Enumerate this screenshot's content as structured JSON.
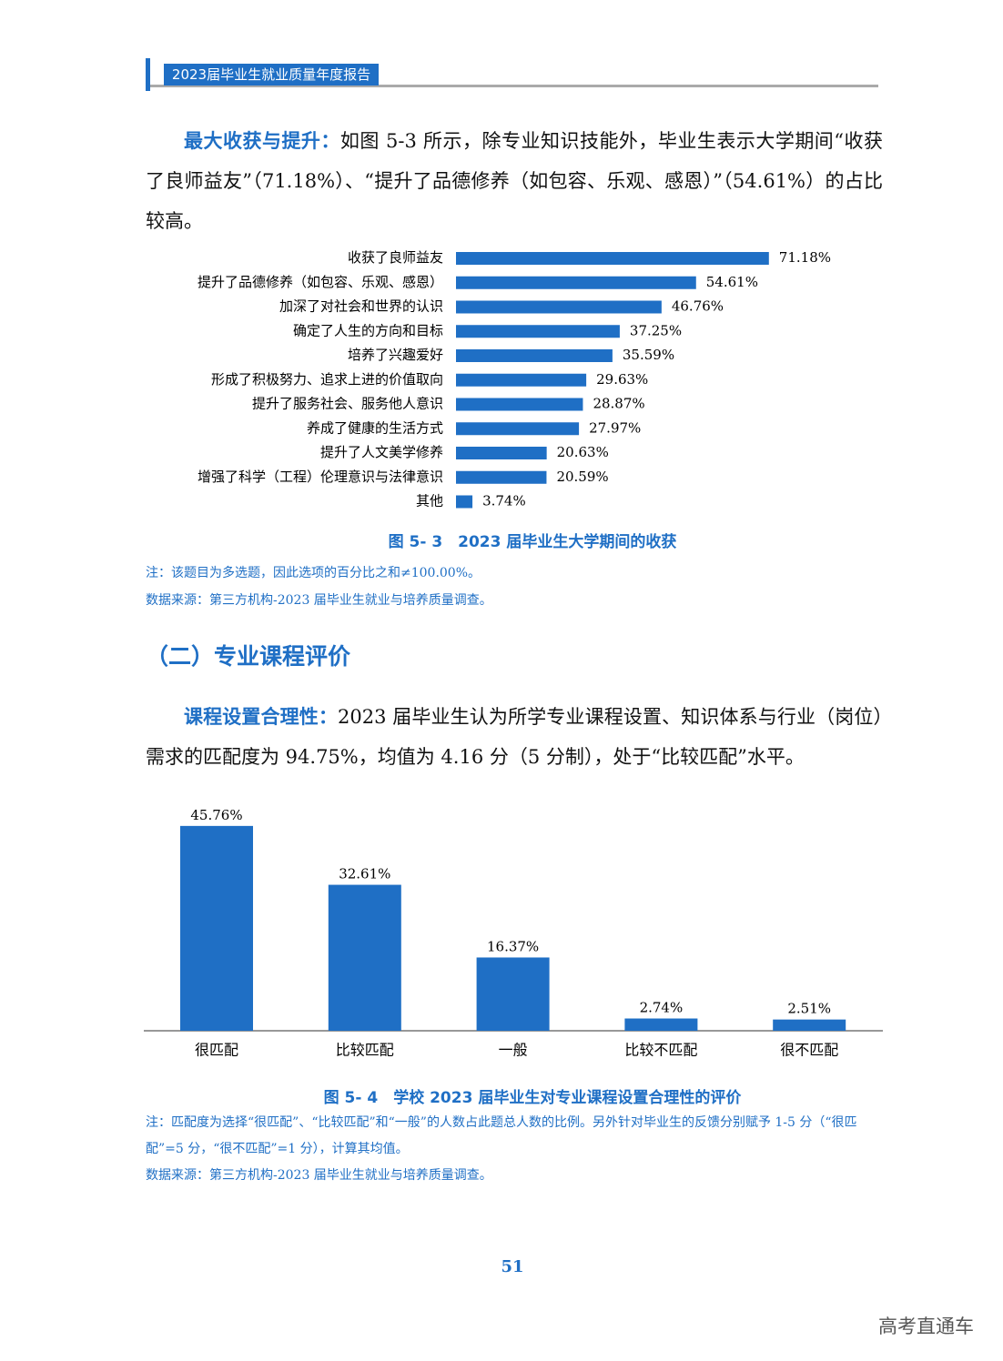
{
  "header": {
    "title": "2023届毕业生就业质量年度报告"
  },
  "paragraphs": [
    {
      "lead": "最大收获与提升：",
      "text": "如图 5-3 所示，除专业知识技能外，毕业生表示大学期间“收获了良师益友”（71.18%）、“提升了品德修养（如包容、乐观、感恩）”（54.61%）的占比较高。"
    },
    {
      "lead": "课程设置合理性：",
      "text": "2023 届毕业生认为所学专业课程设置、知识体系与行业（岗位）需求的匹配度为 94.75%，均值为 4.16 分（5 分制），处于“比较匹配”水平。"
    }
  ],
  "section_heading": "（二）专业课程评价",
  "chart_data": [
    {
      "type": "hbar",
      "color": "#1f6fc5",
      "caption": "图 5- 3　2023 届毕业生大学期间的收获",
      "categories": [
        "收获了良师益友",
        "提升了品德修养（如包容、乐观、感恩）",
        "加深了对社会和世界的认识",
        "确定了人生的方向和目标",
        "培养了兴趣爱好",
        "形成了积极努力、追求上进的价值取向",
        "提升了服务社会、服务他人意识",
        "养成了健康的生活方式",
        "提升了人文美学修养",
        "增强了科学（工程）伦理意识与法律意识",
        "其他"
      ],
      "values": [
        71.18,
        54.61,
        46.76,
        37.25,
        35.59,
        29.63,
        28.87,
        27.97,
        20.63,
        20.59,
        3.74
      ],
      "value_labels": [
        "71.18%",
        "54.61%",
        "46.76%",
        "37.25%",
        "35.59%",
        "29.63%",
        "28.87%",
        "27.97%",
        "20.63%",
        "20.59%",
        "3.74%"
      ],
      "notes": [
        "注：该题目为多选题，因此选项的百分比之和≠100.00%。",
        "数据来源：第三方机构-2023 届毕业生就业与培养质量调查。"
      ]
    },
    {
      "type": "bar",
      "color": "#1f6fc5",
      "caption": "图 5- 4　学校 2023 届毕业生对专业课程设置合理性的评价",
      "categories": [
        "很匹配",
        "比较匹配",
        "一般",
        "比较不匹配",
        "很不匹配"
      ],
      "values": [
        45.76,
        32.61,
        16.37,
        2.74,
        2.51
      ],
      "value_labels": [
        "45.76%",
        "32.61%",
        "16.37%",
        "2.74%",
        "2.51%"
      ],
      "notes": [
        "注：匹配度为选择“很匹配”、“比较匹配”和“一般”的人数占此题总人数的比例。另外针对毕业生的反馈分别赋予 1-5 分（“很匹配”=5 分，“很不匹配”=1 分），计算其均值。",
        "数据来源：第三方机构-2023 届毕业生就业与培养质量调查。"
      ]
    }
  ],
  "page_number": "51",
  "watermark": "高考直通车"
}
